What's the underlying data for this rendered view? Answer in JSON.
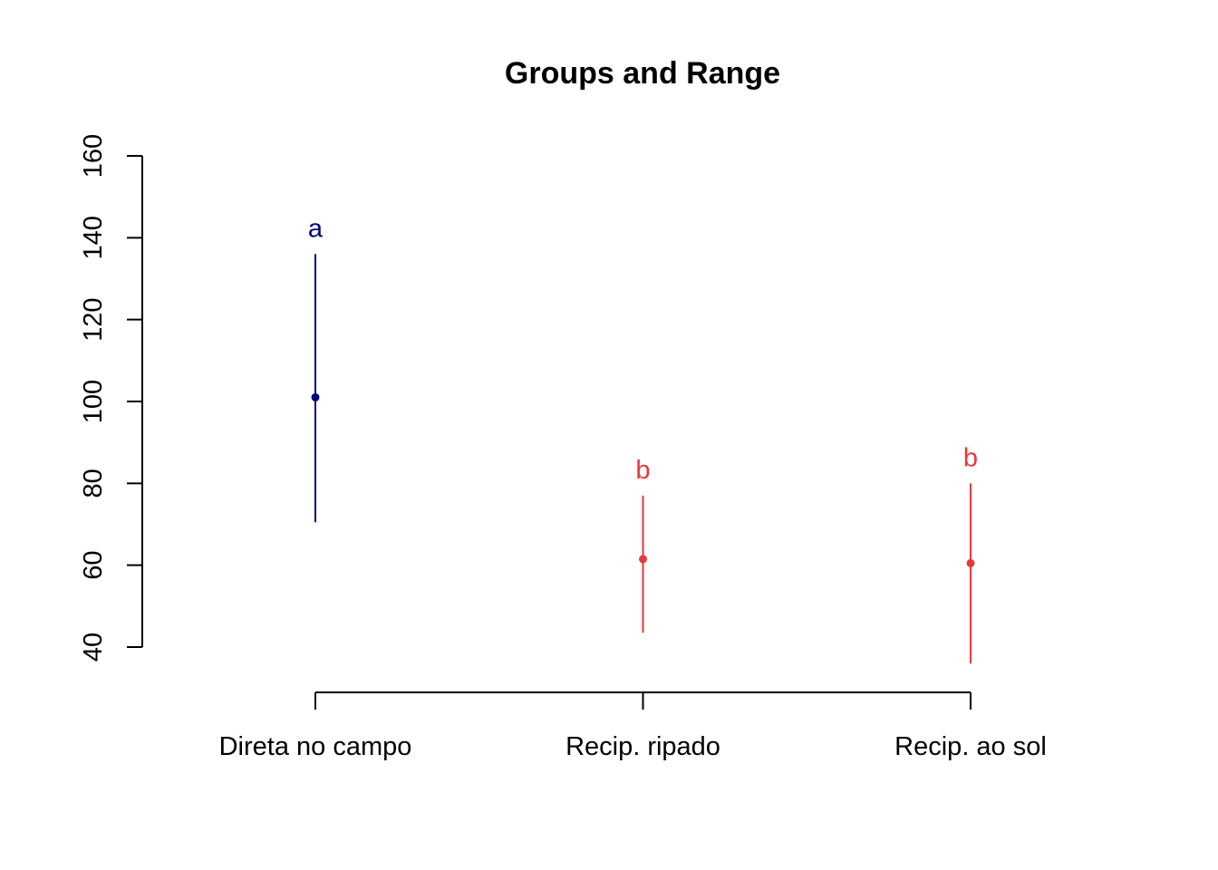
{
  "chart_data": {
    "type": "range",
    "title": "Groups and Range",
    "xlabel": "",
    "ylabel": "",
    "ylim": [
      40,
      160
    ],
    "yticks": [
      "40",
      "60",
      "80",
      "100",
      "120",
      "140",
      "160"
    ],
    "grid": false,
    "categories": [
      "Direta no campo",
      "Recip. ripado",
      "Recip. ao sol"
    ],
    "points": [
      {
        "category": "Direta no campo",
        "mean": 101,
        "min": 70.5,
        "max": 136,
        "group": "a",
        "color": "#00007F"
      },
      {
        "category": "Recip. ripado",
        "mean": 61.5,
        "min": 43.5,
        "max": 77,
        "group": "b",
        "color": "#E8383B"
      },
      {
        "category": "Recip. ao sol",
        "mean": 60.5,
        "min": 36,
        "max": 80,
        "group": "b",
        "color": "#E8383B"
      }
    ]
  }
}
